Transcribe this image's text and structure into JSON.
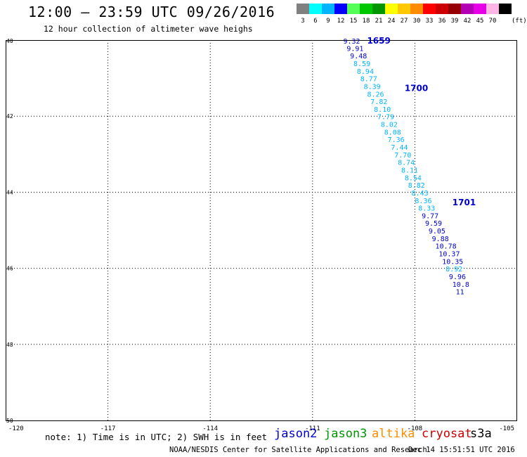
{
  "header": {
    "title": "12:00 – 23:59 UTC 09/26/2016",
    "subtitle": "12 hour collection of altimeter wave heighs"
  },
  "legend": {
    "unit": "(ft)",
    "bins": [
      {
        "label": "3",
        "color": "#808080"
      },
      {
        "label": "6",
        "color": "#00ffff"
      },
      {
        "label": "9",
        "color": "#00b4ff"
      },
      {
        "label": "12",
        "color": "#0000ff"
      },
      {
        "label": "15",
        "color": "#55ff55"
      },
      {
        "label": "18",
        "color": "#00c800"
      },
      {
        "label": "21",
        "color": "#009600"
      },
      {
        "label": "24",
        "color": "#ffff00"
      },
      {
        "label": "27",
        "color": "#ffc800"
      },
      {
        "label": "30",
        "color": "#ff8c00"
      },
      {
        "label": "33",
        "color": "#ff0000"
      },
      {
        "label": "36",
        "color": "#cc0000"
      },
      {
        "label": "39",
        "color": "#960000"
      },
      {
        "label": "42",
        "color": "#b400b4"
      },
      {
        "label": "45",
        "color": "#e600e6"
      },
      {
        "label": "70",
        "color": "#ffb4e6"
      },
      {
        "label": "",
        "color": "#000000"
      }
    ]
  },
  "map": {
    "lat_ticks": [
      "40",
      "42",
      "44",
      "46",
      "48",
      "50"
    ],
    "lon_ticks": [
      "-120",
      "-117",
      "-114",
      "-111",
      "-108",
      "-105"
    ],
    "lat_range": [
      40,
      50
    ],
    "lon_range": [
      -120,
      -105
    ],
    "grid": true,
    "track": [
      {
        "value": "9.32",
        "lon": -110.1,
        "lat": 40.02,
        "color": "#0000cd"
      },
      {
        "value": "9.91",
        "lon": -110.0,
        "lat": 40.21,
        "color": "#0000cd"
      },
      {
        "value": "9.48",
        "lon": -109.9,
        "lat": 40.41,
        "color": "#0000cd"
      },
      {
        "value": "8.59",
        "lon": -109.8,
        "lat": 40.61,
        "color": "#00b4ff"
      },
      {
        "value": "8.94",
        "lon": -109.7,
        "lat": 40.81,
        "color": "#00b4ff"
      },
      {
        "value": "8.77",
        "lon": -109.6,
        "lat": 41.01,
        "color": "#00b4ff"
      },
      {
        "value": "8.39",
        "lon": -109.5,
        "lat": 41.21,
        "color": "#00b4ff"
      },
      {
        "value": "8.26",
        "lon": -109.4,
        "lat": 41.41,
        "color": "#00b4ff"
      },
      {
        "value": "7.82",
        "lon": -109.3,
        "lat": 41.61,
        "color": "#00b4ff"
      },
      {
        "value": "8.10",
        "lon": -109.2,
        "lat": 41.81,
        "color": "#00b4ff"
      },
      {
        "value": "7.79",
        "lon": -109.1,
        "lat": 42.01,
        "color": "#00b4ff"
      },
      {
        "value": "8.02",
        "lon": -109.0,
        "lat": 42.21,
        "color": "#00b4ff"
      },
      {
        "value": "8.08",
        "lon": -108.9,
        "lat": 42.41,
        "color": "#00b4ff"
      },
      {
        "value": "7.36",
        "lon": -108.8,
        "lat": 42.61,
        "color": "#00b4ff"
      },
      {
        "value": "7.44",
        "lon": -108.7,
        "lat": 42.81,
        "color": "#00b4ff"
      },
      {
        "value": "7.70",
        "lon": -108.6,
        "lat": 43.01,
        "color": "#00b4ff"
      },
      {
        "value": "8.74",
        "lon": -108.5,
        "lat": 43.21,
        "color": "#00b4ff"
      },
      {
        "value": "8.11",
        "lon": -108.4,
        "lat": 43.41,
        "color": "#00b4ff"
      },
      {
        "value": "8.54",
        "lon": -108.3,
        "lat": 43.61,
        "color": "#00b4ff"
      },
      {
        "value": "8.82",
        "lon": -108.2,
        "lat": 43.81,
        "color": "#00b4ff"
      },
      {
        "value": "8.43",
        "lon": -108.1,
        "lat": 44.01,
        "color": "#00b4ff"
      },
      {
        "value": "8.36",
        "lon": -108.0,
        "lat": 44.21,
        "color": "#00b4ff"
      },
      {
        "value": "8.33",
        "lon": -107.9,
        "lat": 44.41,
        "color": "#00b4ff"
      },
      {
        "value": "9.77",
        "lon": -107.8,
        "lat": 44.61,
        "color": "#0000cd"
      },
      {
        "value": "9.59",
        "lon": -107.7,
        "lat": 44.81,
        "color": "#0000cd"
      },
      {
        "value": "9.05",
        "lon": -107.6,
        "lat": 45.01,
        "color": "#0000cd"
      },
      {
        "value": "9.88",
        "lon": -107.5,
        "lat": 45.21,
        "color": "#0000cd"
      },
      {
        "value": "10.78",
        "lon": -107.4,
        "lat": 45.41,
        "color": "#0000cd"
      },
      {
        "value": "10.37",
        "lon": -107.3,
        "lat": 45.61,
        "color": "#0000cd"
      },
      {
        "value": "10.35",
        "lon": -107.2,
        "lat": 45.81,
        "color": "#0000cd"
      },
      {
        "value": "8.92",
        "lon": -107.1,
        "lat": 46.01,
        "color": "#00b4ff"
      },
      {
        "value": "9.96",
        "lon": -107.0,
        "lat": 46.21,
        "color": "#0000cd"
      },
      {
        "value": "10.8",
        "lon": -106.9,
        "lat": 46.41,
        "color": "#0000cd"
      },
      {
        "value": "11",
        "lon": -106.8,
        "lat": 46.61,
        "color": "#0000cd"
      }
    ],
    "times": [
      {
        "label": "1659",
        "lon": -109.4,
        "lat": 40.0,
        "color": "#0000cd"
      },
      {
        "label": "1700",
        "lon": -108.3,
        "lat": 41.25,
        "color": "#0000cd"
      },
      {
        "label": "1701",
        "lon": -106.9,
        "lat": 44.25,
        "color": "#0000cd"
      }
    ]
  },
  "note": "note: 1) Time is in UTC; 2) SWH is in feet",
  "satellites": [
    {
      "name": "jason2",
      "color": "#0000cd"
    },
    {
      "name": "jason3",
      "color": "#009600"
    },
    {
      "name": "altika",
      "color": "#ff8c00"
    },
    {
      "name": "cryosat",
      "color": "#cc0000"
    },
    {
      "name": "s3a",
      "color": "#000000"
    }
  ],
  "footer": {
    "credit": "NOAA/NESDIS Center for Satellite Applications and Research",
    "timestamp": "Dec 14 15:51:51 UTC 2016"
  }
}
